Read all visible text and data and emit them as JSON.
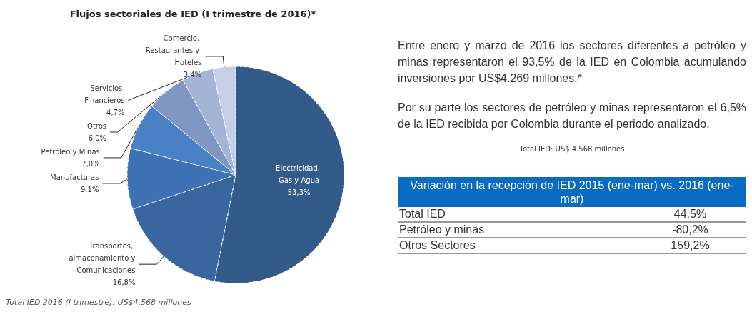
{
  "chart_data": [
    {
      "type": "pie",
      "title": "Flujos sectoriales de IED (I trimestre de 2016)*",
      "categories": [
        "Electricidad, Gas y Agua",
        "Transportes, almacenamiento y Comunicaciones",
        "Manufacturas",
        "Petróleo y Minas",
        "Otros",
        "Servicios Financieros",
        "Comercio, Restaurantes y Hoteles"
      ],
      "values": [
        53.3,
        16.8,
        9.1,
        7.0,
        6.0,
        4.7,
        3.4
      ],
      "value_labels": [
        "53,3%",
        "16,8%",
        "9,1%",
        "7,0%",
        "6,0%",
        "4,7%",
        "3,4%"
      ],
      "colors": [
        "#335b8a",
        "#3a66a0",
        "#3f72b5",
        "#4a80c4",
        "#7f97c2",
        "#a3b4d6",
        "#c5cfe6"
      ],
      "annotations": [
        "Total IED 2016 (I trimestre): US$4.568 millones"
      ]
    },
    {
      "type": "other",
      "title": "Variación en la recepción de IED 2015 (ene-mar) vs. 2016 (ene-mar)",
      "categories": [
        "Total IED",
        "Petróleo y minas",
        "Otros Sectores"
      ],
      "value_labels": [
        "44,5%",
        "-80,2%",
        "159,2%"
      ],
      "annotations": [
        "Entre enero y marzo de 2016 los sectores diferentes a petróleo y minas representaron el 93,5% de la IED en Colombia acumulando inversiones por US$4.269 millones.*",
        "Por su parte los sectores de petróleo y minas representaron el 6,5% de la IED recibida por Colombia durante el periodo analizado.",
        "Total IED: US$ 4.568 millones"
      ]
    }
  ]
}
